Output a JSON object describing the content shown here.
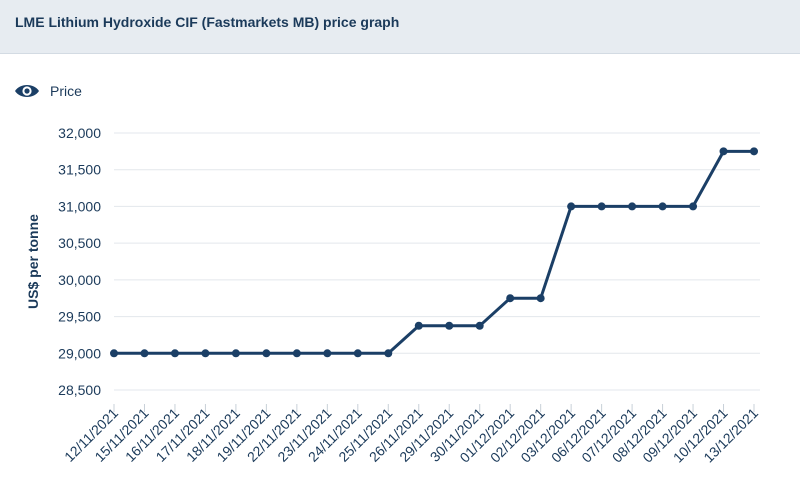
{
  "header": {
    "title": "LME Lithium Hydroxide CIF (Fastmarkets MB) price graph"
  },
  "legend": {
    "icon": "eye-icon"
  },
  "colors": {
    "line": "#1b3f66",
    "grid": "#e3e7ec",
    "text": "#1b3a5a",
    "header_bg": "#e7ecf1"
  },
  "chart_data": {
    "type": "line",
    "ylabel": "US$ per tonne",
    "ylim": [
      28500,
      32000
    ],
    "yticks": [
      28500,
      29000,
      29500,
      30000,
      30500,
      31000,
      31500,
      32000
    ],
    "ytick_labels": [
      "28,500",
      "29,000",
      "29,500",
      "30,000",
      "30,500",
      "31,000",
      "31,500",
      "32,000"
    ],
    "grid": true,
    "legend_position": "top-left",
    "categories": [
      "12/11/2021",
      "15/11/2021",
      "16/11/2021",
      "17/11/2021",
      "18/11/2021",
      "19/11/2021",
      "22/11/2021",
      "23/11/2021",
      "24/11/2021",
      "25/11/2021",
      "26/11/2021",
      "29/11/2021",
      "30/11/2021",
      "01/12/2021",
      "02/12/2021",
      "03/12/2021",
      "06/12/2021",
      "07/12/2021",
      "08/12/2021",
      "09/12/2021",
      "10/12/2021",
      "13/12/2021"
    ],
    "series": [
      {
        "name": "Price",
        "values": [
          29000,
          29000,
          29000,
          29000,
          29000,
          29000,
          29000,
          29000,
          29000,
          29000,
          29375,
          29375,
          29375,
          29750,
          29750,
          31000,
          31000,
          31000,
          31000,
          31000,
          31750,
          31750
        ]
      }
    ]
  }
}
